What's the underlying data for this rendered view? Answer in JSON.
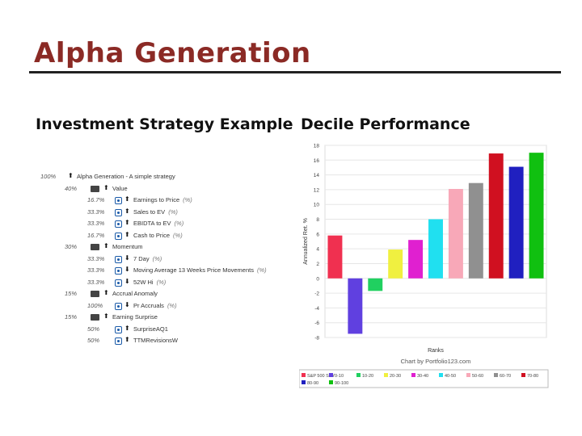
{
  "slide": {
    "title": "Alpha Generation",
    "left_heading": "Investment Strategy Example",
    "right_heading": "Decile Performance"
  },
  "strategy": {
    "rows": [
      {
        "pct": "100%",
        "indent": 0,
        "kind": "root",
        "arrow": "up",
        "label": "Alpha Generation - A simple strategy",
        "fn": ""
      },
      {
        "pct": "40%",
        "indent": 1,
        "kind": "folder",
        "arrow": "up",
        "label": "Value",
        "fn": ""
      },
      {
        "pct": "16.7%",
        "indent": 2,
        "kind": "factor",
        "arrow": "up",
        "label": "Earnings to Price",
        "fn": "(%)"
      },
      {
        "pct": "33.3%",
        "indent": 2,
        "kind": "factor",
        "arrow": "up",
        "label": "Sales to EV",
        "fn": "(%)"
      },
      {
        "pct": "33.3%",
        "indent": 2,
        "kind": "factor",
        "arrow": "up",
        "label": "EBIDTA to EV",
        "fn": "(%)"
      },
      {
        "pct": "16.7%",
        "indent": 2,
        "kind": "factor",
        "arrow": "up",
        "label": "Cash to Price",
        "fn": "(%)"
      },
      {
        "pct": "30%",
        "indent": 1,
        "kind": "folder",
        "arrow": "up",
        "label": "Momentum",
        "fn": ""
      },
      {
        "pct": "33.3%",
        "indent": 2,
        "kind": "factor",
        "arrow": "down",
        "label": "7 Day",
        "fn": "(%)"
      },
      {
        "pct": "33.3%",
        "indent": 2,
        "kind": "factor",
        "arrow": "down",
        "label": "Moving Average 13 Weeks Price Movements",
        "fn": "(%)"
      },
      {
        "pct": "33.3%",
        "indent": 2,
        "kind": "factor",
        "arrow": "down",
        "label": "52W Hi",
        "fn": "(%)"
      },
      {
        "pct": "15%",
        "indent": 1,
        "kind": "folder",
        "arrow": "up",
        "label": "Accrual Anomaly",
        "fn": ""
      },
      {
        "pct": "100%",
        "indent": 2,
        "kind": "factor",
        "arrow": "down",
        "label": "Pr Accruals",
        "fn": "(%)"
      },
      {
        "pct": "15%",
        "indent": 1,
        "kind": "folder",
        "arrow": "up",
        "label": "Earning Surprise",
        "fn": ""
      },
      {
        "pct": "50%",
        "indent": 2,
        "kind": "factor",
        "arrow": "up",
        "label": "SurpriseAQ1",
        "fn": ""
      },
      {
        "pct": "50%",
        "indent": 2,
        "kind": "factor",
        "arrow": "up",
        "label": "TTMRevisionsW",
        "fn": ""
      }
    ]
  },
  "chart_data": {
    "type": "bar",
    "title": "",
    "ylabel": "Annualized Ret. %",
    "xlabel": "Ranks",
    "credit": "Chart by Portfolio123.com",
    "ylim": [
      -8,
      18
    ],
    "yticks": [
      18,
      16,
      14,
      12,
      10,
      8,
      6,
      4,
      2,
      0,
      -2,
      -4,
      -6,
      -8
    ],
    "categories": [
      "S&P 500 SPY",
      "0-10",
      "10-20",
      "20-30",
      "30-40",
      "40-50",
      "50-60",
      "60-70",
      "70-80",
      "80-90",
      "90-100"
    ],
    "values": [
      5.8,
      -7.5,
      -1.7,
      3.9,
      5.2,
      8.0,
      12.1,
      12.9,
      16.9,
      15.1,
      17.0
    ],
    "colors": [
      "#f03050",
      "#6040e0",
      "#20d060",
      "#f0f040",
      "#e020d0",
      "#20e0f0",
      "#f8a8b8",
      "#909090",
      "#d01020",
      "#2020c0",
      "#10c010"
    ],
    "legend_position": "bottom",
    "grid": true
  }
}
